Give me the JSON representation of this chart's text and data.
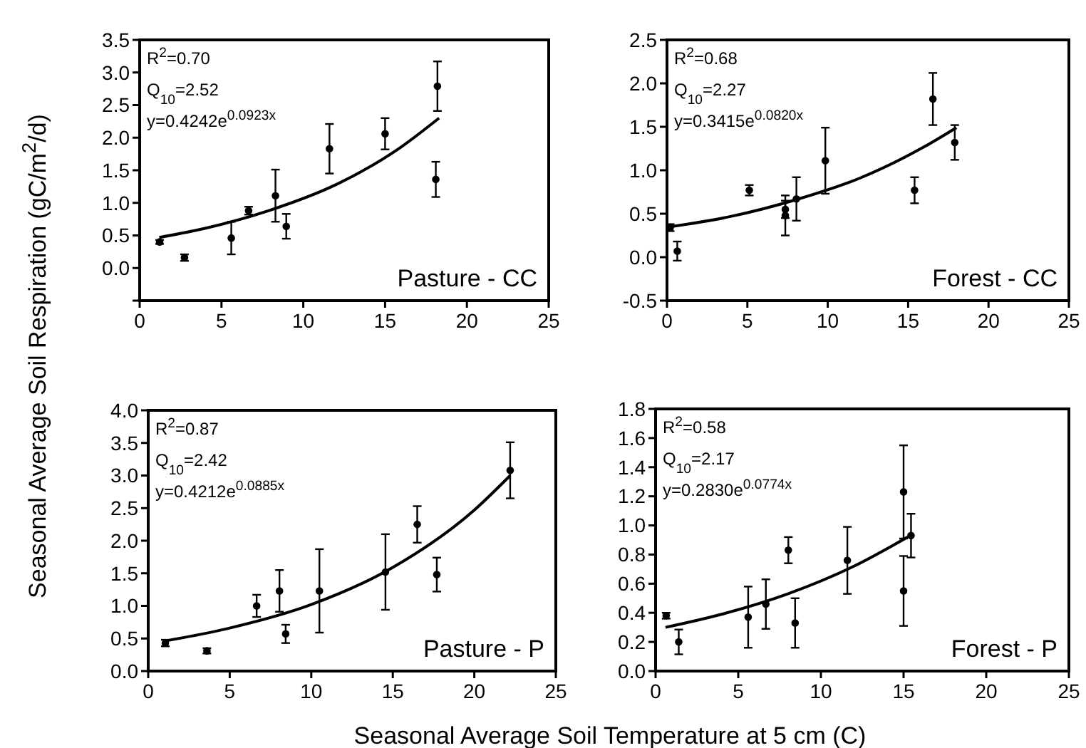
{
  "chart_data": [
    {
      "type": "scatter",
      "ylabel": "Seasonal Average Soil Respiration (gC/m$^{2}$/d)",
      "xlim": [
        0,
        25
      ],
      "xticks": [
        0,
        5,
        10,
        15,
        20,
        25
      ],
      "ylim": [
        -0.5,
        3.5
      ],
      "yticks": [
        {
          "value": -0.5,
          "label": null
        },
        {
          "value": 0,
          "label": "0.0"
        },
        {
          "value": 0.5,
          "label": "0.5"
        },
        {
          "value": 1,
          "label": "1.0"
        },
        {
          "value": 1.5,
          "label": "1.5"
        },
        {
          "value": 2,
          "label": "2.0"
        },
        {
          "value": 2.5,
          "label": "2.5"
        },
        {
          "value": 3,
          "label": "3.0"
        },
        {
          "value": 3.5,
          "label": "3.5"
        }
      ],
      "annotations": [
        "R$^{2}$=0.70",
        "Q$_{10}$=2.52",
        "y=0.4242e$^{0.0923x}$",
        "Pasture - CC"
      ],
      "series": [
        {
          "marker": "circle",
          "color": "#000000",
          "x": [
            1.22,
            2.74,
            5.6,
            6.66,
            8.3,
            8.96,
            11.6,
            15.0,
            18.2,
            18.1
          ],
          "values": [
            0.4,
            0.16,
            0.46,
            0.88,
            1.11,
            0.64,
            1.83,
            2.06,
            2.79,
            1.36
          ],
          "errors": [
            0.03,
            0.05,
            0.25,
            0.06,
            0.4,
            0.19,
            0.38,
            0.24,
            0.38,
            0.27
          ]
        },
        {
          "type": "line",
          "color": "#000000",
          "x": [
            1.2,
            4,
            8,
            12,
            16,
            18.3
          ],
          "values": [
            0.47,
            0.61,
            0.89,
            1.28,
            1.86,
            2.3
          ]
        }
      ]
    },
    {
      "type": "scatter",
      "xlim": [
        0,
        25
      ],
      "xticks": [
        0,
        5,
        10,
        15,
        20,
        25
      ],
      "ylim": [
        -0.5,
        2.5
      ],
      "yticks": [
        {
          "value": -0.5,
          "label": "-0.5"
        },
        {
          "value": 0,
          "label": "0.0"
        },
        {
          "value": 0.5,
          "label": "0.5"
        },
        {
          "value": 1,
          "label": "1.0"
        },
        {
          "value": 1.5,
          "label": "1.5"
        },
        {
          "value": 2,
          "label": "2.0"
        },
        {
          "value": 2.5,
          "label": "2.5"
        }
      ],
      "annotations": [
        "R$^{2}$=0.68",
        "Q$_{10}$=2.27",
        "y=0.3415e$^{0.0820x}$",
        "Forest - CC"
      ],
      "series": [
        {
          "marker": "circle",
          "color": "#000000",
          "x": [
            0.2,
            0.64,
            5.12,
            7.36,
            7.36,
            8.05,
            9.85,
            15.4,
            16.54,
            17.9
          ],
          "values": [
            0.34,
            0.07,
            0.77,
            0.55,
            0.48,
            0.67,
            1.11,
            0.77,
            1.82,
            1.32
          ],
          "errors": [
            0.04,
            0.11,
            0.06,
            0.1,
            0.23,
            0.25,
            0.38,
            0.15,
            0.3,
            0.2
          ]
        },
        {
          "type": "line",
          "color": "#000000",
          "x": [
            0.2,
            4,
            8,
            12,
            16,
            18
          ],
          "values": [
            0.35,
            0.47,
            0.66,
            0.91,
            1.27,
            1.49
          ]
        }
      ]
    },
    {
      "type": "scatter",
      "xlabel": "Seasonal Average Soil Temperature at 5 cm (C)",
      "xlim": [
        0,
        25
      ],
      "xticks": [
        0,
        5,
        10,
        15,
        20,
        25
      ],
      "ylim": [
        0,
        4
      ],
      "yticks": [
        {
          "value": 0,
          "label": "0.0"
        },
        {
          "value": 0.5,
          "label": "0.5"
        },
        {
          "value": 1,
          "label": "1.0"
        },
        {
          "value": 1.5,
          "label": "1.5"
        },
        {
          "value": 2,
          "label": "2.0"
        },
        {
          "value": 2.5,
          "label": "2.5"
        },
        {
          "value": 3,
          "label": "3.0"
        },
        {
          "value": 3.5,
          "label": "3.5"
        },
        {
          "value": 4,
          "label": "4.0"
        }
      ],
      "annotations": [
        "R$^{2}$=0.87",
        "Q$_{10}$=2.42",
        "y=0.4212e$^{0.0885x}$",
        "Pasture - P"
      ],
      "series": [
        {
          "marker": "circle",
          "color": "#000000",
          "x": [
            1.05,
            3.6,
            6.65,
            8.05,
            8.43,
            10.5,
            14.55,
            16.5,
            17.7,
            22.2
          ],
          "values": [
            0.43,
            0.31,
            1.0,
            1.23,
            0.57,
            1.23,
            1.52,
            2.25,
            1.48,
            3.08
          ],
          "errors": [
            0.05,
            0.04,
            0.17,
            0.32,
            0.14,
            0.64,
            0.58,
            0.28,
            0.26,
            0.43
          ]
        },
        {
          "type": "line",
          "color": "#000000",
          "x": [
            1,
            5,
            10,
            15,
            20,
            22.2
          ],
          "values": [
            0.46,
            0.66,
            1.02,
            1.59,
            2.47,
            3.0
          ]
        }
      ]
    },
    {
      "type": "scatter",
      "xlim": [
        0,
        25
      ],
      "xticks": [
        0,
        5,
        10,
        15,
        20,
        25
      ],
      "ylim": [
        0,
        1.8
      ],
      "yticks": [
        {
          "value": 0,
          "label": "0.0"
        },
        {
          "value": 0.2,
          "label": "0.2"
        },
        {
          "value": 0.4,
          "label": "0.4"
        },
        {
          "value": 0.6,
          "label": "0.6"
        },
        {
          "value": 0.8,
          "label": "0.8"
        },
        {
          "value": 1,
          "label": "1.0"
        },
        {
          "value": 1.2,
          "label": "1.2"
        },
        {
          "value": 1.4,
          "label": "1.4"
        },
        {
          "value": 1.6,
          "label": "1.6"
        },
        {
          "value": 1.8,
          "label": "1.8"
        }
      ],
      "annotations": [
        "R$^{2}$=0.58",
        "Q$_{10}$=2.17",
        "y=0.2830e$^{0.0774x}$",
        "Forest - P"
      ],
      "series": [
        {
          "marker": "circle",
          "color": "#000000",
          "x": [
            0.64,
            1.4,
            5.6,
            6.67,
            8.03,
            8.44,
            11.6,
            15.0,
            15.0,
            15.45
          ],
          "values": [
            0.38,
            0.2,
            0.37,
            0.46,
            0.83,
            0.33,
            0.76,
            1.23,
            0.55,
            0.93
          ],
          "errors": [
            0.02,
            0.085,
            0.21,
            0.17,
            0.09,
            0.17,
            0.23,
            0.32,
            0.24,
            0.15
          ]
        },
        {
          "type": "line",
          "color": "#000000",
          "x": [
            0.6,
            4,
            8,
            12,
            15.4
          ],
          "values": [
            0.3,
            0.39,
            0.53,
            0.72,
            0.93
          ]
        }
      ]
    }
  ]
}
